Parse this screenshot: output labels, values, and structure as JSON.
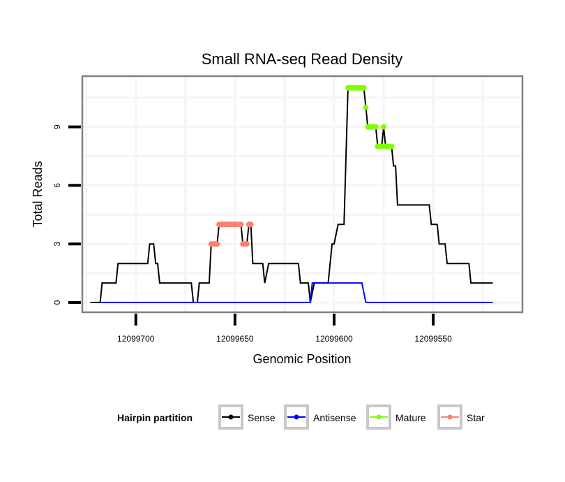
{
  "chart_data": {
    "type": "line",
    "title": "Small RNA-seq Read Density",
    "xlabel": "Genomic Position",
    "ylabel": "Total Reads",
    "x_reversed": true,
    "xlim": [
      12099727,
      12099505
    ],
    "ylim": [
      -0.5,
      11.6
    ],
    "x_ticks": [
      12099700,
      12099650,
      12099600,
      12099550
    ],
    "x_tick_labels": [
      "12099700",
      "12099650",
      "12099600",
      "12099550"
    ],
    "y_ticks": [
      0,
      3,
      6,
      9
    ],
    "y_tick_labels": [
      "0",
      "3",
      "6",
      "9"
    ],
    "grid": true,
    "legend": {
      "title": "Hairpin partition",
      "placement": "bottom",
      "entries": [
        {
          "name": "Sense",
          "color": "#000000"
        },
        {
          "name": "Antisense",
          "color": "#0000ff"
        },
        {
          "name": "Mature",
          "color": "#7fff00"
        },
        {
          "name": "Star",
          "color": "#fa8072"
        }
      ]
    },
    "series": [
      {
        "name": "Sense",
        "color": "#000000",
        "style": "line",
        "points": [
          [
            12099723,
            0
          ],
          [
            12099718,
            0
          ],
          [
            12099717,
            1
          ],
          [
            12099710,
            1
          ],
          [
            12099709,
            2
          ],
          [
            12099694,
            2
          ],
          [
            12099693,
            3
          ],
          [
            12099691,
            3
          ],
          [
            12099690,
            2
          ],
          [
            12099689,
            2
          ],
          [
            12099688,
            1
          ],
          [
            12099672,
            1
          ],
          [
            12099671,
            0
          ],
          [
            12099669,
            0
          ],
          [
            12099668,
            1
          ],
          [
            12099663,
            1
          ],
          [
            12099662,
            3
          ],
          [
            12099659,
            3
          ],
          [
            12099658,
            4
          ],
          [
            12099647,
            4
          ],
          [
            12099646,
            3
          ],
          [
            12099644,
            3
          ],
          [
            12099643,
            4
          ],
          [
            12099642,
            4
          ],
          [
            12099641,
            2
          ],
          [
            12099636,
            2
          ],
          [
            12099635,
            1
          ],
          [
            12099633,
            2
          ],
          [
            12099618,
            2
          ],
          [
            12099617,
            1
          ],
          [
            12099613,
            1
          ],
          [
            12099612,
            0
          ],
          [
            12099610,
            1
          ],
          [
            12099603,
            1
          ],
          [
            12099601,
            3
          ],
          [
            12099600,
            3
          ],
          [
            12099598,
            4
          ],
          [
            12099595,
            4
          ],
          [
            12099593,
            11
          ],
          [
            12099585,
            11
          ],
          [
            12099584,
            10
          ],
          [
            12099583,
            9
          ],
          [
            12099579,
            9
          ],
          [
            12099578,
            8
          ],
          [
            12099576,
            8
          ],
          [
            12099575,
            9
          ],
          [
            12099574,
            8
          ],
          [
            12099571,
            8
          ],
          [
            12099570,
            7
          ],
          [
            12099569,
            7
          ],
          [
            12099568,
            5
          ],
          [
            12099552,
            5
          ],
          [
            12099551,
            4
          ],
          [
            12099548,
            4
          ],
          [
            12099547,
            3
          ],
          [
            12099544,
            3
          ],
          [
            12099543,
            2
          ],
          [
            12099532,
            2
          ],
          [
            12099531,
            1
          ],
          [
            12099520,
            1
          ]
        ]
      },
      {
        "name": "Antisense",
        "color": "#0000ff",
        "style": "line",
        "points": [
          [
            12099718,
            0
          ],
          [
            12099612,
            0
          ],
          [
            12099611,
            1
          ],
          [
            12099586,
            1
          ],
          [
            12099584,
            0
          ],
          [
            12099520,
            0
          ]
        ]
      },
      {
        "name": "Mature",
        "color": "#7fff00",
        "style": "points",
        "points": [
          [
            12099593,
            11
          ],
          [
            12099592,
            11
          ],
          [
            12099591,
            11
          ],
          [
            12099590,
            11
          ],
          [
            12099589,
            11
          ],
          [
            12099588,
            11
          ],
          [
            12099587,
            11
          ],
          [
            12099586,
            11
          ],
          [
            12099585,
            11
          ],
          [
            12099584,
            10
          ],
          [
            12099583,
            9
          ],
          [
            12099582,
            9
          ],
          [
            12099581,
            9
          ],
          [
            12099580,
            9
          ],
          [
            12099579,
            9
          ],
          [
            12099578,
            8
          ],
          [
            12099577,
            8
          ],
          [
            12099576,
            8
          ],
          [
            12099575,
            9
          ],
          [
            12099574,
            8
          ],
          [
            12099573,
            8
          ],
          [
            12099572,
            8
          ],
          [
            12099571,
            8
          ]
        ]
      },
      {
        "name": "Star",
        "color": "#fa8072",
        "style": "points",
        "points": [
          [
            12099662,
            3
          ],
          [
            12099661,
            3
          ],
          [
            12099660,
            3
          ],
          [
            12099659,
            3
          ],
          [
            12099658,
            4
          ],
          [
            12099657,
            4
          ],
          [
            12099656,
            4
          ],
          [
            12099655,
            4
          ],
          [
            12099654,
            4
          ],
          [
            12099653,
            4
          ],
          [
            12099652,
            4
          ],
          [
            12099651,
            4
          ],
          [
            12099650,
            4
          ],
          [
            12099649,
            4
          ],
          [
            12099648,
            4
          ],
          [
            12099647,
            4
          ],
          [
            12099646,
            3
          ],
          [
            12099645,
            3
          ],
          [
            12099644,
            3
          ],
          [
            12099643,
            4
          ],
          [
            12099642,
            4
          ]
        ]
      }
    ]
  }
}
